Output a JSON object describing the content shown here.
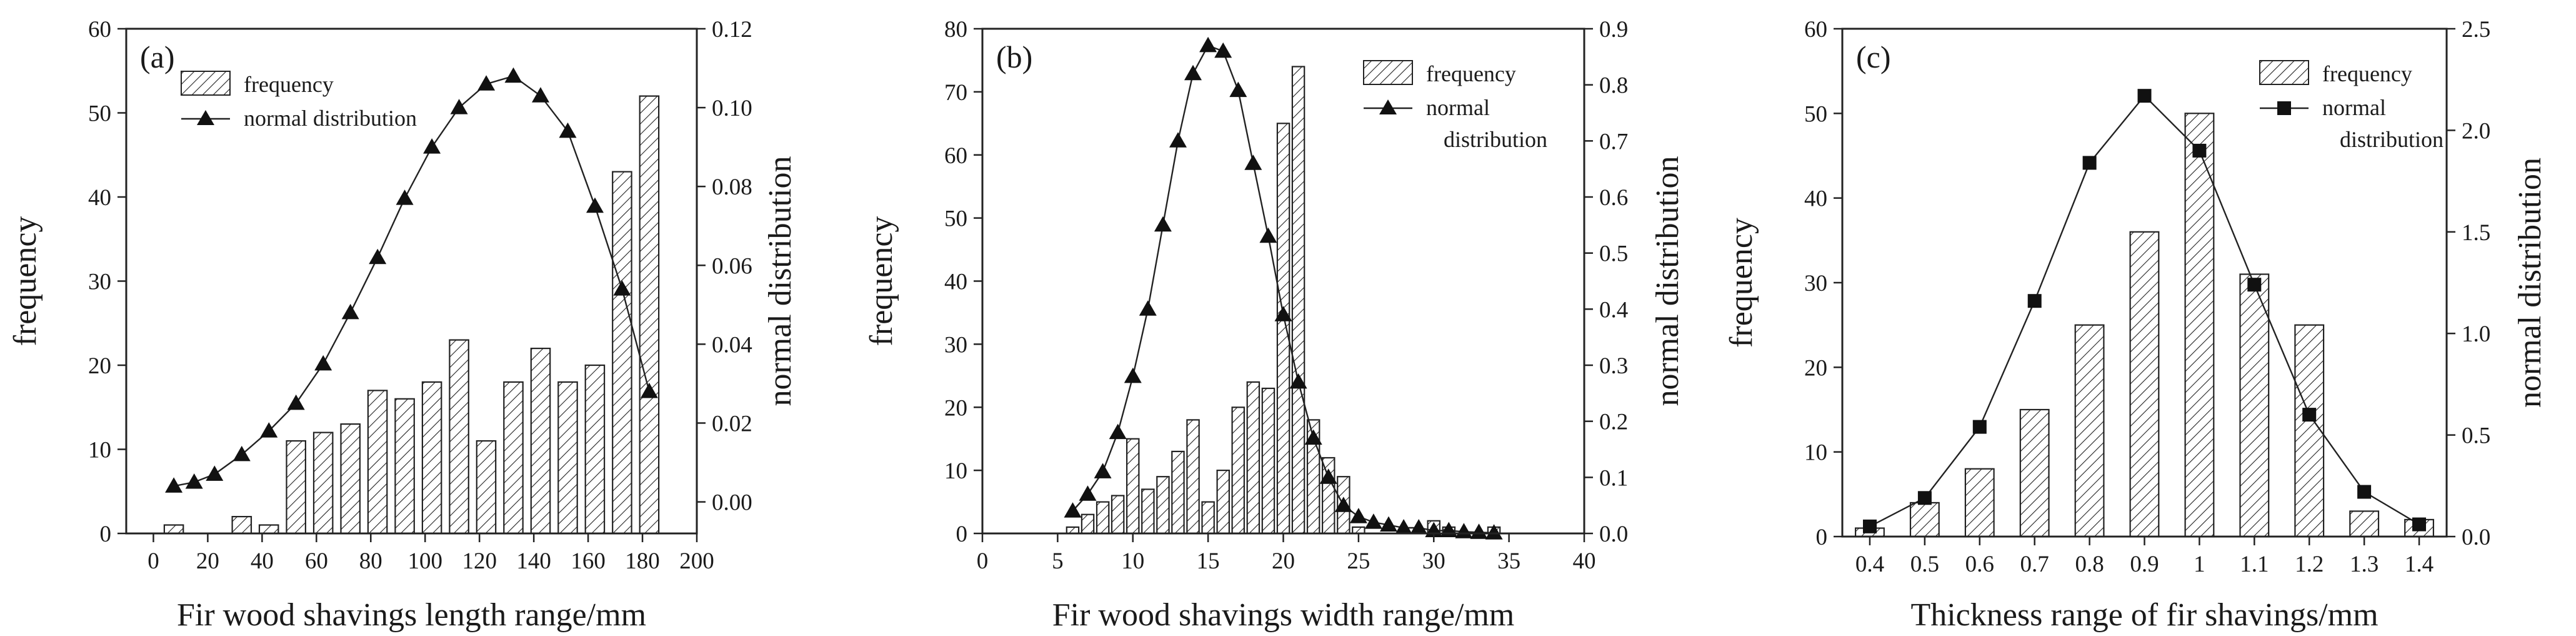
{
  "chart_data": [
    {
      "type": "bar",
      "panel_label": "(a)",
      "xlabel": "Fir wood shavings length range/mm",
      "ylabel": "frequency",
      "y2label": "normal distribution",
      "xlim": [
        -10,
        200
      ],
      "ylim": [
        0,
        60
      ],
      "y2lim": [
        -0.008,
        0.12
      ],
      "xticks": [
        "0",
        "20",
        "40",
        "60",
        "80",
        "100",
        "120",
        "140",
        "160",
        "180",
        "200"
      ],
      "yticks": [
        "0",
        "10",
        "20",
        "30",
        "40",
        "50",
        "60"
      ],
      "y2ticks": [
        "0.00",
        "0.02",
        "0.04",
        "0.06",
        "0.08",
        "0.10",
        "0.12"
      ],
      "legend": {
        "position": "top-left",
        "entries": [
          "frequency",
          "normal distribution"
        ]
      },
      "grid": false,
      "bars": {
        "name": "frequency",
        "width": 7,
        "x": [
          7.5,
          22.5,
          32.5,
          42.5,
          52.5,
          62.5,
          72.5,
          82.5,
          92.5,
          102.5,
          112.5,
          122.5,
          132.5,
          142.5,
          152.5,
          162.5,
          172.5,
          182.5
        ],
        "values": [
          1,
          0,
          2,
          1,
          11,
          12,
          13,
          17,
          16,
          18,
          23,
          11,
          18,
          22,
          18,
          20,
          43,
          52
        ]
      },
      "series": [
        {
          "name": "normal distribution",
          "marker": "triangle",
          "axis": "right",
          "x": [
            7.5,
            15,
            22.5,
            32.5,
            42.5,
            52.5,
            62.5,
            72.5,
            82.5,
            92.5,
            102.5,
            112.5,
            122.5,
            132.5,
            142.5,
            152.5,
            162.5,
            172.5,
            182.5
          ],
          "values": [
            0.004,
            0.005,
            0.007,
            0.012,
            0.018,
            0.025,
            0.035,
            0.048,
            0.062,
            0.077,
            0.09,
            0.1,
            0.106,
            0.108,
            0.103,
            0.094,
            0.075,
            0.054,
            0.028
          ]
        }
      ]
    },
    {
      "type": "bar",
      "panel_label": "(b)",
      "xlabel": "Fir wood shavings width range/mm",
      "ylabel": "frequency",
      "y2label": "normal distribution",
      "xlim": [
        0,
        40
      ],
      "ylim": [
        0,
        80
      ],
      "y2lim": [
        0,
        0.9
      ],
      "xticks": [
        "0",
        "5",
        "10",
        "15",
        "20",
        "25",
        "30",
        "35",
        "40"
      ],
      "yticks": [
        "0",
        "10",
        "20",
        "30",
        "40",
        "50",
        "60",
        "70",
        "80"
      ],
      "y2ticks": [
        "0.0",
        "0.1",
        "0.2",
        "0.3",
        "0.4",
        "0.5",
        "0.6",
        "0.7",
        "0.8",
        "0.9"
      ],
      "legend": {
        "position": "top-right",
        "entries": [
          "frequency",
          "normal",
          "distribution"
        ]
      },
      "grid": false,
      "bars": {
        "name": "frequency",
        "width": 0.8,
        "x": [
          6,
          7,
          8,
          9,
          10,
          11,
          12,
          13,
          14,
          15,
          16,
          17,
          18,
          19,
          20,
          21,
          22,
          23,
          24,
          25,
          26,
          27,
          28,
          29,
          30,
          31,
          32,
          33,
          34
        ],
        "values": [
          1,
          3,
          5,
          6,
          15,
          7,
          9,
          13,
          18,
          5,
          10,
          20,
          24,
          23,
          65,
          74,
          18,
          12,
          9,
          1,
          0,
          0,
          0,
          0,
          2,
          1,
          0,
          0,
          1
        ]
      },
      "series": [
        {
          "name": "normal distribution",
          "marker": "triangle",
          "axis": "right",
          "x": [
            6,
            7,
            8,
            9,
            10,
            11,
            12,
            13,
            14,
            15,
            16,
            17,
            18,
            19,
            20,
            21,
            22,
            23,
            24,
            25,
            26,
            27,
            28,
            29,
            30,
            31,
            32,
            33,
            34
          ],
          "values": [
            0.04,
            0.07,
            0.11,
            0.18,
            0.28,
            0.4,
            0.55,
            0.7,
            0.82,
            0.87,
            0.86,
            0.79,
            0.66,
            0.53,
            0.39,
            0.27,
            0.17,
            0.1,
            0.05,
            0.03,
            0.02,
            0.015,
            0.01,
            0.01,
            0.005,
            0.005,
            0.003,
            0.002,
            0.001
          ]
        }
      ]
    },
    {
      "type": "bar",
      "panel_label": "(c)",
      "xlabel": "Thickness range of fir shavings/mm",
      "ylabel": "frequency",
      "y2label": "normal distribution",
      "ylim": [
        0,
        60
      ],
      "y2lim": [
        0,
        2.5
      ],
      "categories": [
        "0.4",
        "0.5",
        "0.6",
        "0.7",
        "0.8",
        "0.9",
        "1",
        "1.1",
        "1.2",
        "1.3",
        "1.4"
      ],
      "yticks": [
        "0",
        "10",
        "20",
        "30",
        "40",
        "50",
        "60"
      ],
      "y2ticks": [
        "0.0",
        "0.5",
        "1.0",
        "1.5",
        "2.0",
        "2.5"
      ],
      "legend": {
        "position": "top-right",
        "entries": [
          "frequency",
          "normal",
          "distribution"
        ]
      },
      "grid": false,
      "bars": {
        "name": "frequency",
        "values": [
          1,
          4,
          8,
          15,
          25,
          36,
          50,
          31,
          25,
          3,
          2
        ]
      },
      "series": [
        {
          "name": "normal distribution",
          "marker": "square",
          "axis": "right",
          "values": [
            0.05,
            0.19,
            0.54,
            1.16,
            1.84,
            2.17,
            1.9,
            1.24,
            0.6,
            0.22,
            0.06
          ]
        }
      ]
    }
  ]
}
